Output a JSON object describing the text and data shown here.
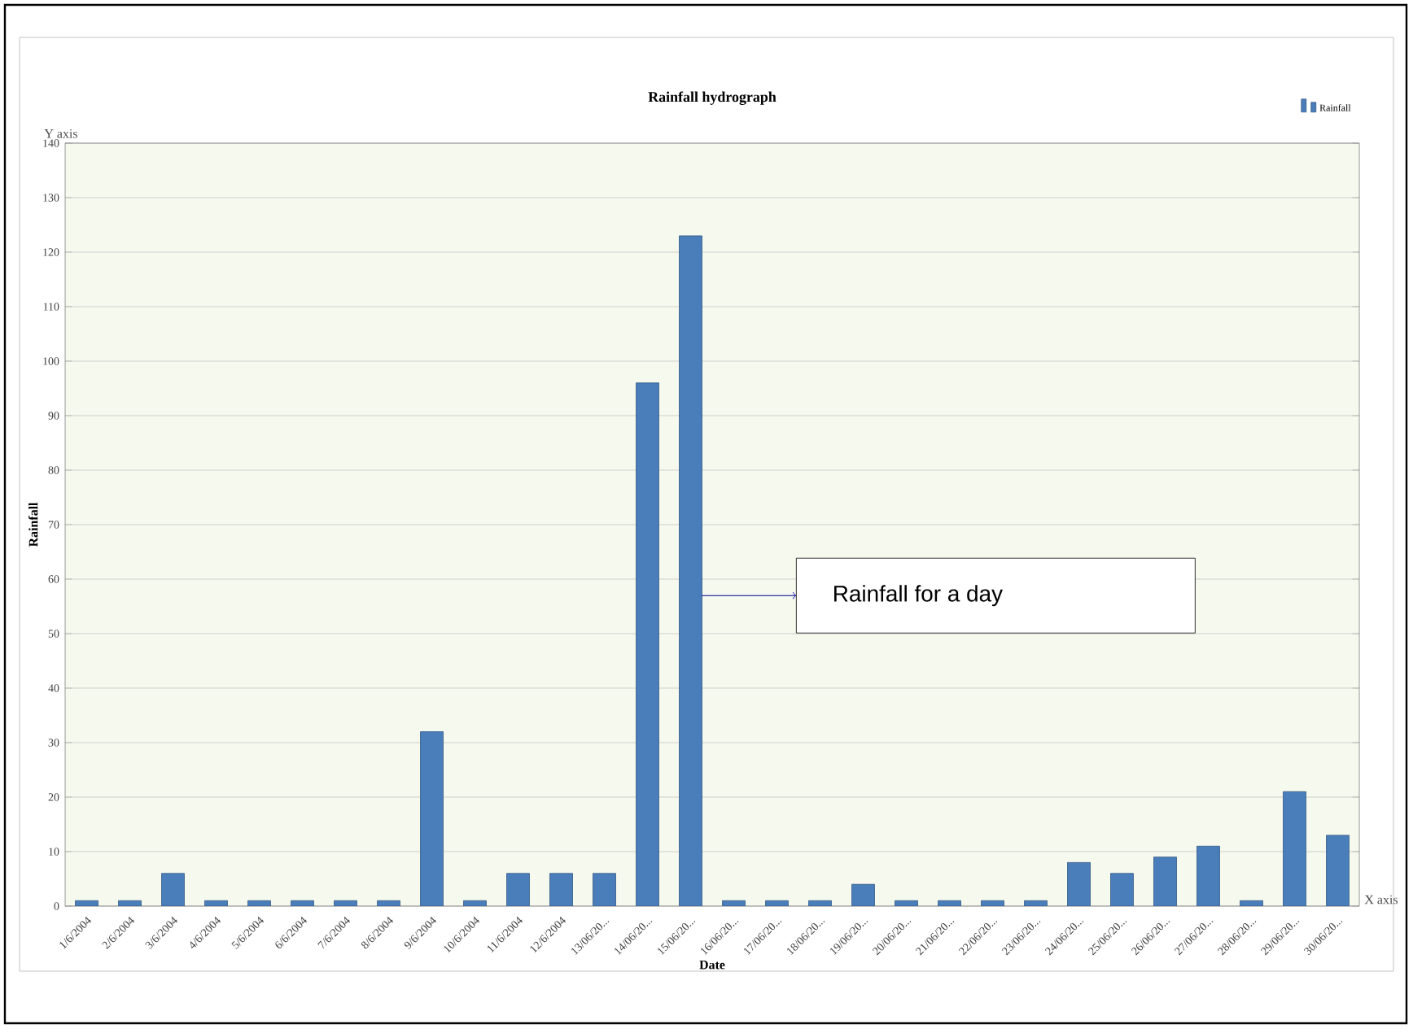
{
  "chart_data": {
    "type": "bar",
    "title": "Rainfall hydrograph",
    "xlabel": "Date",
    "ylabel": "Rainfall",
    "categories": [
      "1/6/2004",
      "2/6/2004",
      "3/6/2004",
      "4/6/2004",
      "5/6/2004",
      "6/6/2004",
      "7/6/2004",
      "8/6/2004",
      "9/6/2004",
      "10/6/2004",
      "11/6/2004",
      "12/6/2004",
      "13/06/20...",
      "14/06/20...",
      "15/06/20...",
      "16/06/20...",
      "17/06/20...",
      "18/06/20...",
      "19/06/20...",
      "20/06/20...",
      "21/06/20...",
      "22/06/20...",
      "23/06/20...",
      "24/06/20...",
      "25/06/20...",
      "26/06/20...",
      "27/06/20...",
      "28/06/20...",
      "29/06/20...",
      "30/06/20..."
    ],
    "series": [
      {
        "name": "Rainfall",
        "color": "#4a7ebb",
        "values": [
          1,
          1,
          6,
          1,
          1,
          1,
          1,
          1,
          32,
          1,
          6,
          6,
          6,
          96,
          123,
          1,
          1,
          1,
          4,
          1,
          1,
          1,
          1,
          8,
          6,
          9,
          11,
          1,
          21,
          13
        ]
      }
    ],
    "ylim": [
      0,
      140
    ],
    "yticks": [
      0,
      10,
      20,
      30,
      40,
      50,
      60,
      70,
      80,
      90,
      100,
      110,
      120,
      130,
      140
    ],
    "grid": "y",
    "legend": "top right",
    "annotations": [
      "Y axis",
      "X axis",
      "Rainfall for a day"
    ]
  }
}
